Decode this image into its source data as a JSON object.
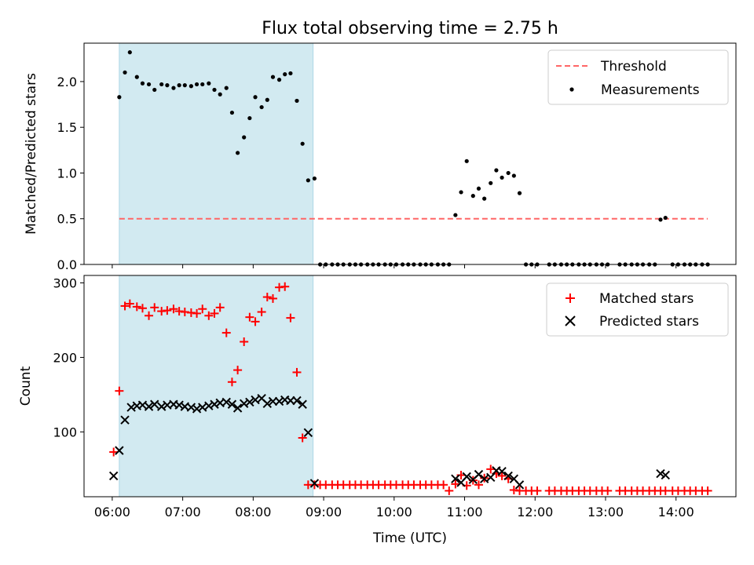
{
  "chart_data": [
    {
      "type": "scatter",
      "title": "Flux total observing time = 2.75 h",
      "xlabel": "",
      "ylabel": "Matched/Predicted stars",
      "x_unit": "hours UTC",
      "xlim": [
        5.6,
        14.85
      ],
      "ylim": [
        0.0,
        2.42
      ],
      "xticks": [
        6,
        7,
        8,
        9,
        10,
        11,
        12,
        13,
        14
      ],
      "xtick_labels": [
        "06:00",
        "07:00",
        "08:00",
        "09:00",
        "10:00",
        "11:00",
        "12:00",
        "13:00",
        "14:00"
      ],
      "yticks": [
        0.0,
        0.5,
        1.0,
        1.5,
        2.0
      ],
      "ytick_labels": [
        "0.0",
        "0.5",
        "1.0",
        "1.5",
        "2.0"
      ],
      "shaded_span": [
        6.1,
        8.85
      ],
      "shaded_color": "#add8e6",
      "threshold": {
        "name": "Threshold",
        "y": 0.5,
        "x_range": [
          6.1,
          14.45
        ],
        "color": "#ff6666"
      },
      "legend_position": "top-right",
      "legend": [
        "Threshold",
        "Measurements"
      ],
      "series": [
        {
          "name": "Measurements",
          "color": "#000000",
          "marker": "dot",
          "x": [
            6.1,
            6.18,
            6.25,
            6.35,
            6.43,
            6.52,
            6.6,
            6.7,
            6.78,
            6.87,
            6.95,
            7.03,
            7.12,
            7.2,
            7.28,
            7.37,
            7.45,
            7.53,
            7.62,
            7.7,
            7.78,
            7.87,
            7.95,
            8.03,
            8.12,
            8.2,
            8.28,
            8.37,
            8.45,
            8.53,
            8.62,
            8.7,
            8.78,
            8.87,
            8.95,
            9.03,
            9.12,
            9.2,
            9.28,
            9.37,
            9.45,
            9.53,
            9.62,
            9.7,
            9.78,
            9.87,
            9.95,
            10.03,
            10.12,
            10.2,
            10.28,
            10.37,
            10.45,
            10.53,
            10.62,
            10.7,
            10.78,
            10.87,
            10.95,
            11.03,
            11.12,
            11.2,
            11.28,
            11.37,
            11.45,
            11.53,
            11.62,
            11.7,
            11.78,
            11.87,
            11.95,
            12.03,
            12.2,
            12.28,
            12.37,
            12.45,
            12.53,
            12.62,
            12.7,
            12.78,
            12.87,
            12.95,
            13.03,
            13.2,
            13.28,
            13.37,
            13.45,
            13.53,
            13.62,
            13.7,
            13.78,
            13.85,
            13.95,
            14.03,
            14.12,
            14.2,
            14.28,
            14.37,
            14.45
          ],
          "y": [
            1.83,
            2.1,
            2.32,
            2.05,
            1.98,
            1.97,
            1.91,
            1.97,
            1.96,
            1.93,
            1.96,
            1.96,
            1.95,
            1.97,
            1.97,
            1.98,
            1.91,
            1.86,
            1.93,
            1.66,
            1.22,
            1.39,
            1.6,
            1.83,
            1.72,
            1.8,
            2.05,
            2.02,
            2.08,
            2.09,
            1.79,
            1.32,
            0.92,
            0.94,
            0.0,
            0.0,
            0.0,
            0.0,
            0.0,
            0.0,
            0.0,
            0.0,
            0.0,
            0.0,
            0.0,
            0.0,
            0.0,
            0.0,
            0.0,
            0.0,
            0.0,
            0.0,
            0.0,
            0.0,
            0.0,
            0.0,
            0.0,
            0.54,
            0.79,
            1.13,
            0.75,
            0.83,
            0.72,
            0.89,
            1.03,
            0.95,
            1.0,
            0.97,
            0.78,
            0.0,
            0.0,
            0.0,
            0.0,
            0.0,
            0.0,
            0.0,
            0.0,
            0.0,
            0.0,
            0.0,
            0.0,
            0.0,
            0.0,
            0.0,
            0.0,
            0.0,
            0.0,
            0.0,
            0.0,
            0.0,
            0.49,
            0.51,
            0.0,
            0.0,
            0.0,
            0.0,
            0.0,
            0.0,
            0.0
          ]
        }
      ]
    },
    {
      "type": "scatter",
      "title": "",
      "xlabel": "Time (UTC)",
      "ylabel": "Count",
      "x_unit": "hours UTC",
      "xlim": [
        5.6,
        14.85
      ],
      "ylim": [
        13,
        310
      ],
      "xticks": [
        6,
        7,
        8,
        9,
        10,
        11,
        12,
        13,
        14
      ],
      "xtick_labels": [
        "06:00",
        "07:00",
        "08:00",
        "09:00",
        "10:00",
        "11:00",
        "12:00",
        "13:00",
        "14:00"
      ],
      "yticks": [
        100,
        200,
        300
      ],
      "ytick_labels": [
        "100",
        "200",
        "300"
      ],
      "shaded_span": [
        6.1,
        8.85
      ],
      "shaded_color": "#add8e6",
      "legend_position": "top-right",
      "legend": [
        "Matched stars",
        "Predicted stars"
      ],
      "series": [
        {
          "name": "Matched stars",
          "color": "#ff0000",
          "marker": "plus",
          "x": [
            6.02,
            6.1,
            6.18,
            6.25,
            6.35,
            6.43,
            6.52,
            6.6,
            6.7,
            6.78,
            6.87,
            6.95,
            7.03,
            7.12,
            7.2,
            7.28,
            7.37,
            7.45,
            7.53,
            7.62,
            7.7,
            7.78,
            7.87,
            7.95,
            8.03,
            8.12,
            8.2,
            8.28,
            8.37,
            8.45,
            8.53,
            8.62,
            8.7,
            8.78,
            8.87,
            8.95,
            9.03,
            9.12,
            9.2,
            9.28,
            9.37,
            9.45,
            9.53,
            9.62,
            9.7,
            9.78,
            9.87,
            9.95,
            10.03,
            10.12,
            10.2,
            10.28,
            10.37,
            10.45,
            10.53,
            10.62,
            10.7,
            10.78,
            10.87,
            10.95,
            11.03,
            11.12,
            11.2,
            11.28,
            11.37,
            11.45,
            11.53,
            11.62,
            11.7,
            11.78,
            11.87,
            11.95,
            12.03,
            12.2,
            12.28,
            12.37,
            12.45,
            12.53,
            12.62,
            12.7,
            12.78,
            12.87,
            12.95,
            13.03,
            13.2,
            13.28,
            13.37,
            13.45,
            13.53,
            13.62,
            13.7,
            13.78,
            13.85,
            13.95,
            14.03,
            14.12,
            14.2,
            14.28,
            14.37,
            14.45
          ],
          "y": [
            73,
            155,
            269,
            272,
            268,
            266,
            256,
            267,
            262,
            263,
            265,
            262,
            261,
            260,
            259,
            265,
            256,
            259,
            267,
            233,
            167,
            183,
            221,
            254,
            248,
            261,
            281,
            279,
            294,
            295,
            253,
            180,
            92,
            29,
            29,
            29,
            29,
            29,
            29,
            29,
            29,
            29,
            29,
            29,
            29,
            29,
            29,
            29,
            29,
            29,
            29,
            29,
            29,
            29,
            29,
            29,
            29,
            21,
            30,
            42,
            28,
            35,
            29,
            38,
            50,
            44,
            41,
            37,
            22,
            21,
            21,
            21,
            21,
            21,
            21,
            21,
            21,
            21,
            21,
            21,
            21,
            21,
            21,
            21,
            21,
            21,
            21,
            21,
            21,
            21,
            21,
            21,
            21,
            21,
            21,
            21,
            21,
            21,
            21,
            21
          ]
        },
        {
          "name": "Predicted stars",
          "color": "#000000",
          "marker": "x",
          "x": [
            6.02,
            6.1,
            6.18,
            6.27,
            6.35,
            6.43,
            6.52,
            6.6,
            6.7,
            6.78,
            6.87,
            6.95,
            7.03,
            7.12,
            7.2,
            7.28,
            7.37,
            7.45,
            7.53,
            7.62,
            7.7,
            7.78,
            7.87,
            7.95,
            8.03,
            8.12,
            8.2,
            8.28,
            8.37,
            8.45,
            8.53,
            8.62,
            8.7,
            8.78,
            8.87,
            10.87,
            10.95,
            11.03,
            11.12,
            11.2,
            11.28,
            11.37,
            11.45,
            11.53,
            11.62,
            11.7,
            11.78,
            13.78,
            13.85
          ],
          "y": [
            41,
            75,
            116,
            133,
            135,
            136,
            134,
            137,
            134,
            136,
            137,
            136,
            134,
            133,
            131,
            133,
            135,
            137,
            139,
            140,
            137,
            132,
            138,
            140,
            143,
            145,
            138,
            141,
            141,
            143,
            142,
            142,
            137,
            99,
            31,
            37,
            32,
            40,
            36,
            43,
            37,
            39,
            48,
            47,
            41,
            37,
            29,
            44,
            42
          ]
        }
      ]
    }
  ]
}
